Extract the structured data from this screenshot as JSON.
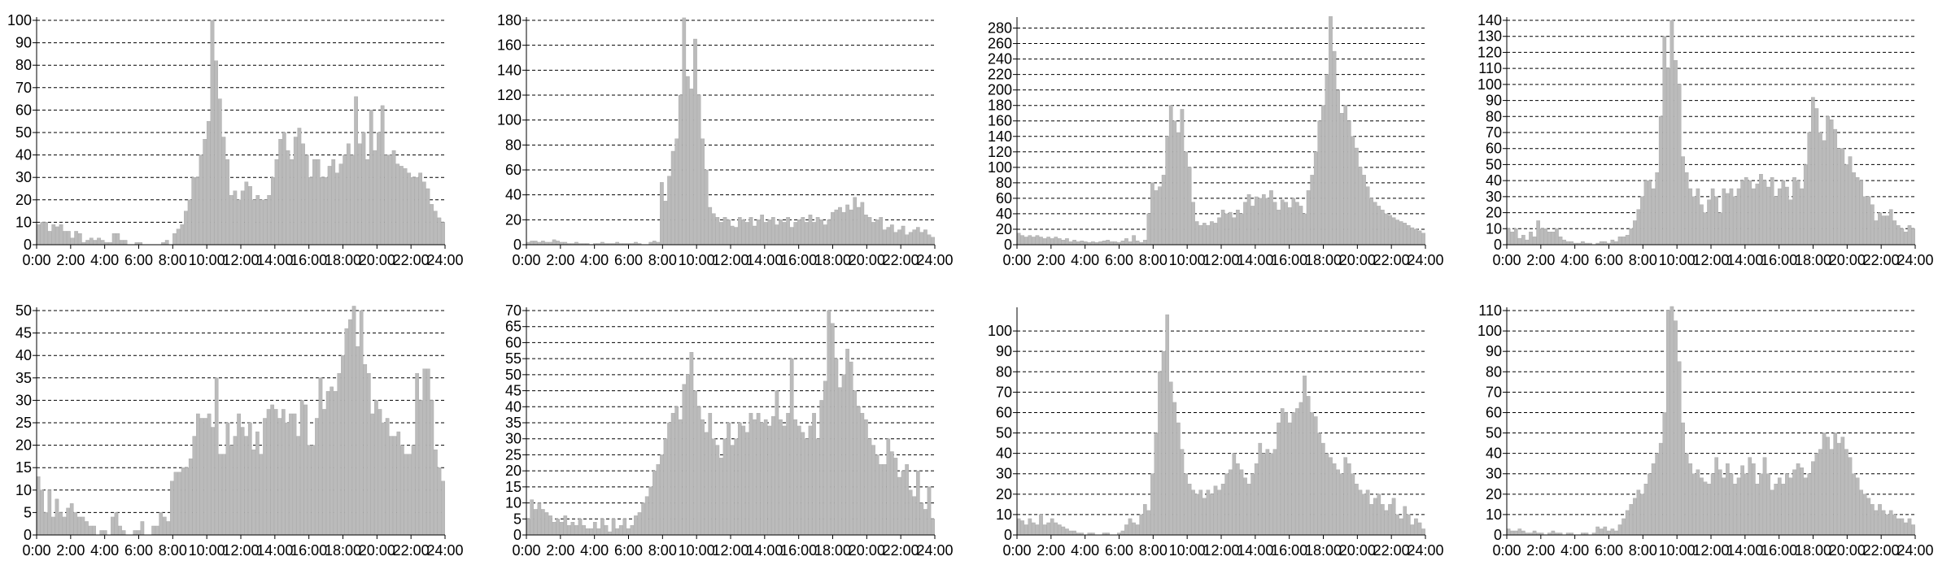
{
  "colors": {
    "bar": "#bbbbbb",
    "bar_stroke": "#a5a5a5",
    "grid": "#000000",
    "background": "#ffffff"
  },
  "chart_data": [
    {
      "type": "bar",
      "xlim": [
        0,
        24
      ],
      "ylim": [
        0,
        100
      ],
      "xticks": [
        "0:00",
        "2:00",
        "4:00",
        "6:00",
        "8:00",
        "10:00",
        "12:00",
        "14:00",
        "16:00",
        "18:00",
        "20:00",
        "22:00",
        "24:00"
      ],
      "yticks": [
        0,
        10,
        20,
        30,
        40,
        50,
        60,
        70,
        80,
        90,
        100
      ],
      "grid": "horizontal-dashed",
      "bin_width_minutes": 15,
      "values": [
        9,
        10,
        10,
        6,
        9,
        8,
        9,
        6,
        6,
        3,
        6,
        5,
        1,
        2,
        3,
        2,
        3,
        2,
        1,
        1,
        5,
        5,
        2,
        2,
        0,
        0,
        1,
        1,
        0,
        0,
        0,
        0,
        0,
        1,
        2,
        0,
        5,
        7,
        9,
        15,
        20,
        30,
        30,
        40,
        47,
        55,
        100,
        82,
        65,
        48,
        38,
        22,
        24,
        20,
        24,
        28,
        26,
        20,
        22,
        20,
        20,
        22,
        30,
        38,
        47,
        50,
        42,
        38,
        48,
        52,
        45,
        40,
        30,
        38,
        38,
        30,
        30,
        35,
        38,
        32,
        36,
        40,
        45,
        40,
        66,
        45,
        50,
        38,
        60,
        42,
        50,
        62,
        40,
        40,
        42,
        36,
        35,
        34,
        32,
        30,
        30,
        32,
        28,
        25,
        18,
        15,
        12,
        10
      ]
    },
    {
      "type": "bar",
      "xlim": [
        0,
        24
      ],
      "ylim": [
        0,
        180
      ],
      "xticks": [
        "0:00",
        "2:00",
        "4:00",
        "6:00",
        "8:00",
        "10:00",
        "12:00",
        "14:00",
        "16:00",
        "18:00",
        "20:00",
        "22:00",
        "24:00"
      ],
      "yticks": [
        0,
        20,
        40,
        60,
        80,
        100,
        120,
        140,
        160,
        180
      ],
      "grid": "horizontal-dashed",
      "bin_width_minutes": 15,
      "values": [
        2,
        3,
        3,
        2,
        3,
        2,
        2,
        4,
        3,
        2,
        2,
        1,
        1,
        2,
        1,
        1,
        1,
        0,
        1,
        1,
        2,
        1,
        1,
        1,
        2,
        1,
        1,
        1,
        1,
        2,
        1,
        0,
        0,
        2,
        3,
        2,
        50,
        35,
        55,
        75,
        85,
        120,
        182,
        135,
        125,
        165,
        120,
        85,
        60,
        30,
        25,
        22,
        18,
        22,
        20,
        15,
        14,
        22,
        20,
        18,
        22,
        15,
        20,
        24,
        18,
        20,
        22,
        16,
        20,
        18,
        22,
        14,
        18,
        20,
        22,
        18,
        24,
        18,
        22,
        20,
        16,
        20,
        26,
        28,
        30,
        26,
        32,
        28,
        38,
        30,
        34,
        24,
        22,
        18,
        20,
        22,
        12,
        14,
        16,
        10,
        12,
        15,
        8,
        10,
        12,
        14,
        10,
        12,
        8,
        6
      ]
    },
    {
      "type": "bar",
      "xlim": [
        0,
        24
      ],
      "ylim": [
        0,
        290
      ],
      "xticks": [
        "0:00",
        "2:00",
        "4:00",
        "6:00",
        "8:00",
        "10:00",
        "12:00",
        "14:00",
        "16:00",
        "18:00",
        "20:00",
        "22:00",
        "24:00"
      ],
      "yticks": [
        0,
        20,
        40,
        60,
        80,
        100,
        120,
        140,
        160,
        180,
        200,
        220,
        240,
        260,
        280
      ],
      "grid": "horizontal-dashed",
      "bin_width_minutes": 15,
      "values": [
        15,
        12,
        10,
        12,
        10,
        12,
        10,
        8,
        10,
        8,
        10,
        8,
        6,
        8,
        4,
        6,
        4,
        5,
        4,
        3,
        4,
        3,
        4,
        5,
        6,
        4,
        4,
        3,
        5,
        8,
        4,
        12,
        5,
        3,
        6,
        40,
        80,
        70,
        75,
        90,
        140,
        180,
        160,
        145,
        175,
        120,
        100,
        55,
        30,
        25,
        28,
        25,
        30,
        28,
        35,
        45,
        40,
        42,
        35,
        45,
        40,
        55,
        65,
        50,
        62,
        60,
        65,
        60,
        70,
        55,
        45,
        58,
        55,
        48,
        60,
        55,
        50,
        40,
        70,
        90,
        120,
        160,
        180,
        220,
        295,
        250,
        200,
        170,
        180,
        160,
        140,
        125,
        100,
        90,
        75,
        60,
        55,
        50,
        45,
        40,
        38,
        35,
        32,
        30,
        28,
        25,
        22,
        20,
        18,
        15
      ]
    },
    {
      "type": "bar",
      "xlim": [
        0,
        24
      ],
      "ylim": [
        0,
        140
      ],
      "xticks": [
        "0:00",
        "2:00",
        "4:00",
        "6:00",
        "8:00",
        "10:00",
        "12:00",
        "14:00",
        "16:00",
        "18:00",
        "20:00",
        "22:00",
        "24:00"
      ],
      "yticks": [
        0,
        10,
        20,
        30,
        40,
        50,
        60,
        70,
        80,
        90,
        100,
        110,
        120,
        130,
        140
      ],
      "grid": "horizontal-dashed",
      "bin_width_minutes": 15,
      "values": [
        10,
        8,
        10,
        4,
        6,
        3,
        8,
        5,
        15,
        10,
        10,
        8,
        8,
        10,
        5,
        3,
        2,
        2,
        1,
        1,
        2,
        1,
        1,
        0,
        1,
        2,
        2,
        1,
        3,
        2,
        5,
        5,
        6,
        10,
        15,
        22,
        30,
        40,
        40,
        35,
        45,
        80,
        130,
        110,
        140,
        115,
        100,
        55,
        45,
        35,
        30,
        35,
        25,
        20,
        28,
        35,
        30,
        20,
        35,
        32,
        35,
        30,
        35,
        40,
        42,
        40,
        35,
        38,
        44,
        40,
        36,
        42,
        30,
        35,
        40,
        36,
        28,
        42,
        40,
        35,
        50,
        70,
        92,
        85,
        70,
        65,
        80,
        78,
        72,
        60,
        60,
        50,
        55,
        45,
        42,
        40,
        30,
        30,
        25,
        15,
        20,
        18,
        18,
        22,
        15,
        12,
        10,
        8,
        12,
        10
      ]
    },
    {
      "type": "bar",
      "xlim": [
        0,
        24
      ],
      "ylim": [
        0,
        50
      ],
      "xticks": [
        "0:00",
        "2:00",
        "4:00",
        "6:00",
        "8:00",
        "10:00",
        "12:00",
        "14:00",
        "16:00",
        "18:00",
        "20:00",
        "22:00",
        "24:00"
      ],
      "yticks": [
        0,
        5,
        10,
        15,
        20,
        25,
        30,
        35,
        40,
        45,
        50
      ],
      "grid": "horizontal-dashed",
      "bin_width_minutes": 15,
      "values": [
        13,
        10,
        5,
        10,
        4,
        8,
        5,
        4,
        6,
        7,
        5,
        4,
        4,
        3,
        2,
        2,
        0,
        1,
        1,
        0,
        4,
        5,
        2,
        1,
        0,
        0,
        1,
        1,
        3,
        0,
        0,
        2,
        2,
        5,
        4,
        3,
        12,
        14,
        14,
        15,
        15,
        17,
        22,
        27,
        26,
        26,
        27,
        24,
        35,
        18,
        18,
        25,
        20,
        22,
        27,
        24,
        22,
        25,
        19,
        23,
        18,
        26,
        28,
        29,
        28,
        26,
        28,
        25,
        27,
        27,
        22,
        30,
        29,
        20,
        20,
        26,
        35,
        28,
        32,
        33,
        32,
        36,
        40,
        46,
        48,
        51,
        42,
        50,
        38,
        36,
        27,
        30,
        28,
        25,
        26,
        22,
        22,
        23,
        20,
        18,
        18,
        20,
        36,
        30,
        37,
        37,
        30,
        19,
        15,
        12
      ]
    },
    {
      "type": "bar",
      "xlim": [
        0,
        24
      ],
      "ylim": [
        0,
        70
      ],
      "xticks": [
        "0:00",
        "2:00",
        "4:00",
        "6:00",
        "8:00",
        "10:00",
        "12:00",
        "14:00",
        "16:00",
        "18:00",
        "20:00",
        "22:00",
        "24:00"
      ],
      "yticks": [
        0,
        5,
        10,
        15,
        20,
        25,
        30,
        35,
        40,
        45,
        50,
        55,
        60,
        65,
        70
      ],
      "grid": "horizontal-dashed",
      "bin_width_minutes": 15,
      "values": [
        5,
        11,
        8,
        10,
        8,
        7,
        6,
        4,
        5,
        4,
        6,
        3,
        4,
        3,
        5,
        3,
        2,
        2,
        4,
        2,
        5,
        3,
        1,
        5,
        2,
        3,
        5,
        2,
        3,
        6,
        7,
        10,
        12,
        15,
        20,
        22,
        25,
        30,
        35,
        38,
        40,
        36,
        47,
        50,
        57,
        45,
        40,
        36,
        32,
        38,
        30,
        28,
        24,
        30,
        35,
        28,
        30,
        35,
        34,
        32,
        38,
        36,
        38,
        35,
        36,
        34,
        37,
        45,
        36,
        34,
        38,
        55,
        36,
        34,
        32,
        30,
        34,
        38,
        30,
        42,
        48,
        70,
        66,
        55,
        46,
        50,
        58,
        54,
        45,
        40,
        38,
        36,
        30,
        28,
        25,
        22,
        22,
        30,
        26,
        24,
        18,
        20,
        22,
        14,
        12,
        20,
        10,
        8,
        15,
        5
      ]
    },
    {
      "type": "bar",
      "xlim": [
        0,
        24
      ],
      "ylim": [
        0,
        110
      ],
      "xticks": [
        "0:00",
        "2:00",
        "4:00",
        "6:00",
        "8:00",
        "10:00",
        "12:00",
        "14:00",
        "16:00",
        "18:00",
        "20:00",
        "22:00",
        "24:00"
      ],
      "yticks": [
        0,
        10,
        20,
        30,
        40,
        50,
        60,
        70,
        80,
        90,
        100
      ],
      "grid": "horizontal-dashed",
      "bin_width_minutes": 15,
      "values": [
        8,
        7,
        5,
        8,
        6,
        5,
        10,
        5,
        6,
        8,
        6,
        5,
        4,
        3,
        2,
        2,
        1,
        1,
        0,
        1,
        1,
        0,
        0,
        1,
        1,
        0,
        0,
        1,
        2,
        5,
        8,
        6,
        5,
        10,
        15,
        12,
        30,
        50,
        80,
        90,
        108,
        75,
        65,
        55,
        42,
        30,
        25,
        22,
        20,
        22,
        18,
        22,
        20,
        24,
        22,
        25,
        30,
        32,
        40,
        35,
        32,
        28,
        25,
        30,
        35,
        45,
        40,
        42,
        40,
        42,
        55,
        62,
        60,
        55,
        60,
        62,
        65,
        78,
        68,
        60,
        58,
        50,
        45,
        40,
        38,
        35,
        32,
        30,
        38,
        35,
        30,
        25,
        22,
        20,
        22,
        15,
        18,
        20,
        15,
        12,
        15,
        18,
        10,
        8,
        14,
        10,
        5,
        8,
        6,
        3
      ]
    },
    {
      "type": "bar",
      "xlim": [
        0,
        24
      ],
      "ylim": [
        0,
        110
      ],
      "xticks": [
        "0:00",
        "2:00",
        "4:00",
        "6:00",
        "8:00",
        "10:00",
        "12:00",
        "14:00",
        "16:00",
        "18:00",
        "20:00",
        "22:00",
        "24:00"
      ],
      "yticks": [
        0,
        10,
        20,
        30,
        40,
        50,
        60,
        70,
        80,
        90,
        100,
        110
      ],
      "grid": "horizontal-dashed",
      "bin_width_minutes": 15,
      "values": [
        3,
        2,
        2,
        3,
        2,
        1,
        1,
        2,
        1,
        1,
        0,
        1,
        2,
        1,
        1,
        0,
        1,
        1,
        0,
        0,
        1,
        1,
        0,
        1,
        4,
        3,
        4,
        2,
        3,
        2,
        5,
        8,
        12,
        15,
        18,
        22,
        20,
        25,
        30,
        35,
        40,
        45,
        60,
        110,
        112,
        105,
        85,
        55,
        40,
        35,
        30,
        32,
        28,
        26,
        25,
        30,
        38,
        32,
        28,
        35,
        30,
        25,
        28,
        34,
        30,
        38,
        35,
        25,
        30,
        38,
        30,
        22,
        25,
        28,
        25,
        30,
        28,
        32,
        35,
        33,
        28,
        30,
        36,
        40,
        42,
        50,
        48,
        42,
        50,
        45,
        48,
        42,
        38,
        30,
        28,
        22,
        20,
        18,
        15,
        12,
        15,
        12,
        10,
        12,
        10,
        8,
        8,
        6,
        8,
        5
      ]
    }
  ]
}
